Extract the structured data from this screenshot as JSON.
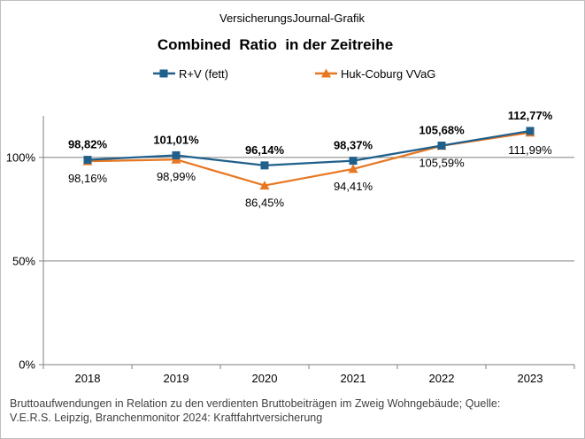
{
  "header": {
    "source_line": "VersicherungsJournal-Grafik",
    "title": "Combined  Ratio  in der Zeitreihe"
  },
  "legend": {
    "series_1": "R+V (fett)",
    "series_2": "Huk-Coburg VVaG"
  },
  "footnote": {
    "line_1": "Bruttoaufwendungen   in Relation zu den verdienten  Bruttobeiträgen  im Zweig Wohngebäude;  Quelle:",
    "line_2": "V.E.R.S. Leipzig, Branchenmonitor  2024:  Kraftfahrtversicherung"
  },
  "chart_data": {
    "type": "line",
    "title": "Combined  Ratio  in der Zeitreihe",
    "categories": [
      "2018",
      "2019",
      "2020",
      "2021",
      "2022",
      "2023"
    ],
    "series": [
      {
        "name": "R+V (fett)",
        "values": [
          98.82,
          101.01,
          96.14,
          98.37,
          105.68,
          112.77
        ],
        "labels": [
          "98,82%",
          "101,01%",
          "96,14%",
          "98,37%",
          "105,68%",
          "112,77%"
        ],
        "color": "#1f5f8b",
        "marker": "square",
        "label_position": "above",
        "label_bold": true
      },
      {
        "name": "Huk-Coburg VVaG",
        "values": [
          98.16,
          98.99,
          86.45,
          94.41,
          105.59,
          111.99
        ],
        "labels": [
          "98,16%",
          "98,99%",
          "86,45%",
          "94,41%",
          "105,59%",
          "111,99%"
        ],
        "color": "#e87722",
        "marker": "triangle",
        "label_position": "below",
        "label_bold": false
      }
    ],
    "yticks": [
      0,
      50,
      100
    ],
    "ytick_labels": [
      "0%",
      "50%",
      "100%"
    ],
    "ylim": [
      0,
      120
    ],
    "xlabel": "",
    "ylabel": "",
    "grid": true,
    "legend_position": "top"
  }
}
